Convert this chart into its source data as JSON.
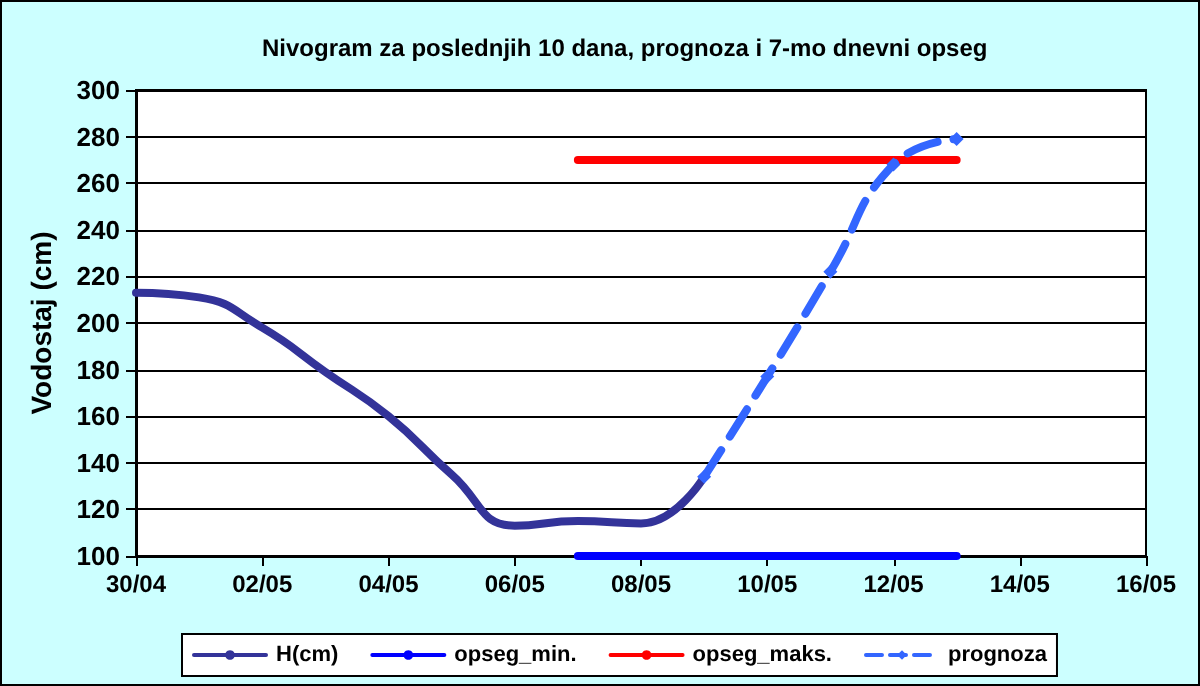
{
  "chart_data": {
    "type": "line",
    "title": "Nivogram za poslednjih 10 dana, prognoza i 7-mo dnevni opseg",
    "ylabel": "Vodostaj (cm)",
    "xlim": [
      "--04-30",
      "--05-16"
    ],
    "xticks": [
      {
        "value": "--04-30",
        "label": "30/04"
      },
      {
        "value": "--05-02",
        "label": "02/05"
      },
      {
        "value": "--05-04",
        "label": "04/05"
      },
      {
        "value": "--05-06",
        "label": "06/05"
      },
      {
        "value": "--05-08",
        "label": "08/05"
      },
      {
        "value": "--05-10",
        "label": "10/05"
      },
      {
        "value": "--05-12",
        "label": "12/05"
      },
      {
        "value": "--05-14",
        "label": "14/05"
      },
      {
        "value": "--05-16",
        "label": "16/05"
      }
    ],
    "ylim": [
      100,
      300
    ],
    "yticks": [
      100,
      120,
      140,
      160,
      180,
      200,
      220,
      240,
      260,
      280,
      300
    ],
    "grid": "y",
    "legend": "bottom",
    "marker": "none",
    "line_style": "solid",
    "series": [
      {
        "name": "H(cm)",
        "color": "#333399",
        "x": [
          "--04-30",
          "--05-01",
          "--05-02",
          "--05-03",
          "--05-04",
          "--05-05",
          "--05-06",
          "--05-07",
          "--05-08",
          "--05-09"
        ],
        "values": [
          213,
          211,
          198,
          179,
          160,
          135,
          113,
          115,
          114,
          134
        ]
      },
      {
        "name": "opseg_min.",
        "color": "#0000ff",
        "x": [
          "--05-07",
          "--05-13"
        ],
        "values": [
          100,
          100
        ]
      },
      {
        "name": "opseg_maks.",
        "color": "#ff0000",
        "x": [
          "--05-07",
          "--05-13"
        ],
        "values": [
          270,
          270
        ]
      },
      {
        "name": "prognoza",
        "color": "#3366ff",
        "marker": "diamond",
        "line_style": "dashed",
        "x": [
          "--05-09",
          "--05-10",
          "--05-11",
          "--05-12",
          "--05-13"
        ],
        "values": [
          134,
          177,
          222,
          268,
          279
        ]
      }
    ]
  }
}
